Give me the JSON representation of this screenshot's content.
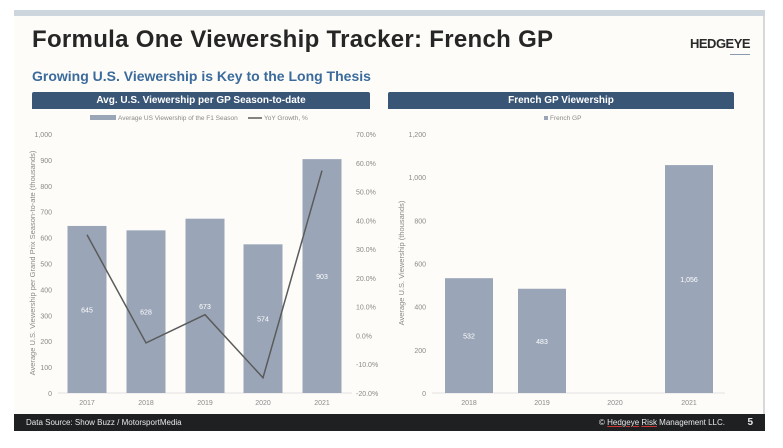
{
  "header": {
    "title": "Formula One Viewership Tracker: French GP",
    "logo": "HEDGEYE",
    "subtitle": "Growing U.S. Viewership is Key to the Long Thesis"
  },
  "footer": {
    "source": "Data Source: Show Buzz / MotorsportMedia",
    "copyright_prefix": "© ",
    "copyright_link1": "Hedgeye",
    "copyright_link2": "Risk",
    "copyright_suffix": " Management LLC.",
    "page": "5"
  },
  "colors": {
    "bar": "#9aa6b8",
    "line": "#5b5b5b",
    "header_bar": "#3a5677",
    "subtitle": "#3b6b9c"
  },
  "chart_data": [
    {
      "type": "bar",
      "title": "Avg. U.S. Viewership per GP Season-to-date",
      "categories": [
        "2017",
        "2018",
        "2019",
        "2020",
        "2021"
      ],
      "series": [
        {
          "name": "Average US Viewership of the F1 Season",
          "type": "bar",
          "axis": "left",
          "values": [
            645,
            628,
            673,
            574,
            903
          ],
          "labels": [
            "645",
            "628",
            "673",
            "574",
            "903"
          ]
        },
        {
          "name": "YoY Growth, %",
          "type": "line",
          "axis": "right",
          "values": [
            35.0,
            -2.6,
            7.2,
            -14.7,
            57.3
          ]
        }
      ],
      "ylabel": "Average U.S.  Viewership per Grand Prix Season-to-ate (thousands)",
      "ylim": [
        0,
        1000
      ],
      "yticks": [
        "0",
        "100",
        "200",
        "300",
        "400",
        "500",
        "600",
        "700",
        "800",
        "900",
        "1,000"
      ],
      "y2lim": [
        -20,
        70
      ],
      "y2ticks": [
        "-20.0%",
        "-10.0%",
        "0.0%",
        "10.0%",
        "20.0%",
        "30.0%",
        "40.0%",
        "50.0%",
        "60.0%",
        "70.0%"
      ],
      "legend": "top-center",
      "grid": false
    },
    {
      "type": "bar",
      "title": "French GP Viewership",
      "categories": [
        "2018",
        "2019",
        "2020",
        "2021"
      ],
      "series": [
        {
          "name": "French GP",
          "values": [
            532,
            483,
            null,
            1056
          ],
          "labels": [
            "532",
            "483",
            "",
            "1,056"
          ]
        }
      ],
      "ylabel": "Average U.S. Viewership (thousands)",
      "ylim": [
        0,
        1200
      ],
      "yticks": [
        "0",
        "200",
        "400",
        "600",
        "800",
        "1,000",
        "1,200"
      ],
      "legend": "top-center",
      "grid": false
    }
  ]
}
